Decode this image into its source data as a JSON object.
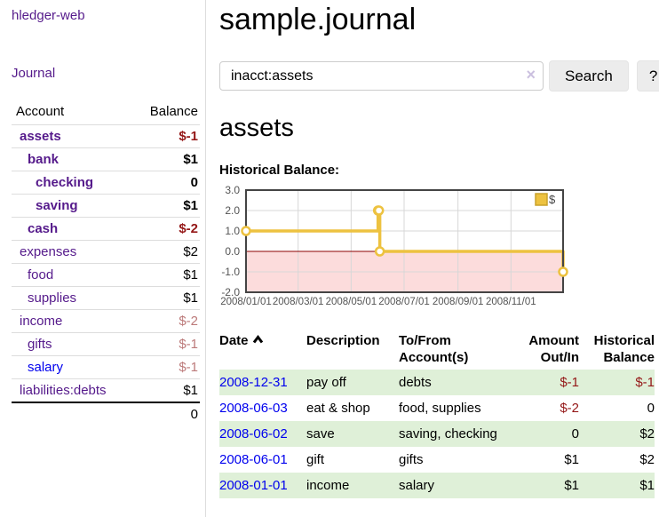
{
  "sidebar": {
    "app_title": "hledger-web",
    "nav_journal": "Journal",
    "accounts_table": {
      "headers": [
        "Account",
        "Balance"
      ],
      "rows": [
        {
          "name": "assets",
          "depth": 1,
          "balance": "$-1",
          "bold": true,
          "balance_color": "neg"
        },
        {
          "name": "bank",
          "depth": 2,
          "balance": "$1",
          "bold": true
        },
        {
          "name": "checking",
          "depth": 3,
          "balance": "0",
          "bold": true
        },
        {
          "name": "saving",
          "depth": 3,
          "balance": "$1",
          "bold": true
        },
        {
          "name": "cash",
          "depth": 2,
          "balance": "$-2",
          "bold": true,
          "balance_color": "neg"
        },
        {
          "name": "expenses",
          "depth": 1,
          "balance": "$2"
        },
        {
          "name": "food",
          "depth": 2,
          "balance": "$1"
        },
        {
          "name": "supplies",
          "depth": 2,
          "balance": "$1"
        },
        {
          "name": "income",
          "depth": 1,
          "balance": "$-2",
          "balance_color": "mneg"
        },
        {
          "name": "gifts",
          "depth": 2,
          "balance": "$-1",
          "balance_color": "mneg"
        },
        {
          "name": "salary",
          "depth": 2,
          "balance": "$-1",
          "balance_color": "mneg",
          "name_color": "blue"
        },
        {
          "name": "liabilities:debts",
          "depth": 1,
          "balance": "$1"
        }
      ],
      "total": "0"
    }
  },
  "header": {
    "title": "sample.journal"
  },
  "search": {
    "query": "inacct:assets",
    "clear_icon": "×",
    "button_label": "Search",
    "help_label": "?"
  },
  "account_page": {
    "title": "assets",
    "chart_label": "Historical Balance:"
  },
  "chart_data": {
    "type": "line",
    "title": "Historical Balance",
    "step": true,
    "series": [
      {
        "name": "$",
        "color": "#edc240",
        "points": [
          [
            "2008/01/01",
            1
          ],
          [
            "2008/06/01",
            2
          ],
          [
            "2008/06/02",
            2
          ],
          [
            "2008/06/03",
            0
          ],
          [
            "2008/12/31",
            -1
          ]
        ]
      }
    ],
    "xlim": [
      "2008/01/01",
      "2008/12/31"
    ],
    "ylim": [
      -2,
      3
    ],
    "yticks": [
      3,
      2,
      1,
      0,
      -1,
      -2
    ],
    "ytick_labels": [
      "3.0",
      "2.0",
      "1.0",
      "0.0",
      "-1.0",
      "-2.0"
    ],
    "xticks": [
      "2008/01/01",
      "2008/03/01",
      "2008/05/01",
      "2008/07/01",
      "2008/09/01",
      "2008/11/01"
    ],
    "grid": true,
    "legend_position": "top-right",
    "zero_line_color": "#8b0000",
    "negative_region_color": "#fcdcdc",
    "border_color": "#444444",
    "gridline_color": "#d7d7d7"
  },
  "register_table": {
    "headers": [
      {
        "l1": "Date",
        "l2": ""
      },
      {
        "l1": "Description",
        "l2": ""
      },
      {
        "l1": "To/From",
        "l2": "Account(s)"
      },
      {
        "l1": "Amount",
        "l2": "Out/In"
      },
      {
        "l1": "Historical",
        "l2": "Balance"
      }
    ],
    "rows": [
      {
        "date": "2008-12-31",
        "description": "pay off",
        "accounts": "debts",
        "amount": "$-1",
        "balance": "$-1"
      },
      {
        "date": "2008-06-03",
        "description": "eat & shop",
        "accounts": "food, supplies",
        "amount": "$-2",
        "balance": "0"
      },
      {
        "date": "2008-06-02",
        "description": "save",
        "accounts": "saving, checking",
        "amount": "0",
        "balance": "$2"
      },
      {
        "date": "2008-06-01",
        "description": "gift",
        "accounts": "gifts",
        "amount": "$1",
        "balance": "$2"
      },
      {
        "date": "2008-01-01",
        "description": "income",
        "accounts": "salary",
        "amount": "$1",
        "balance": "$1"
      }
    ]
  }
}
